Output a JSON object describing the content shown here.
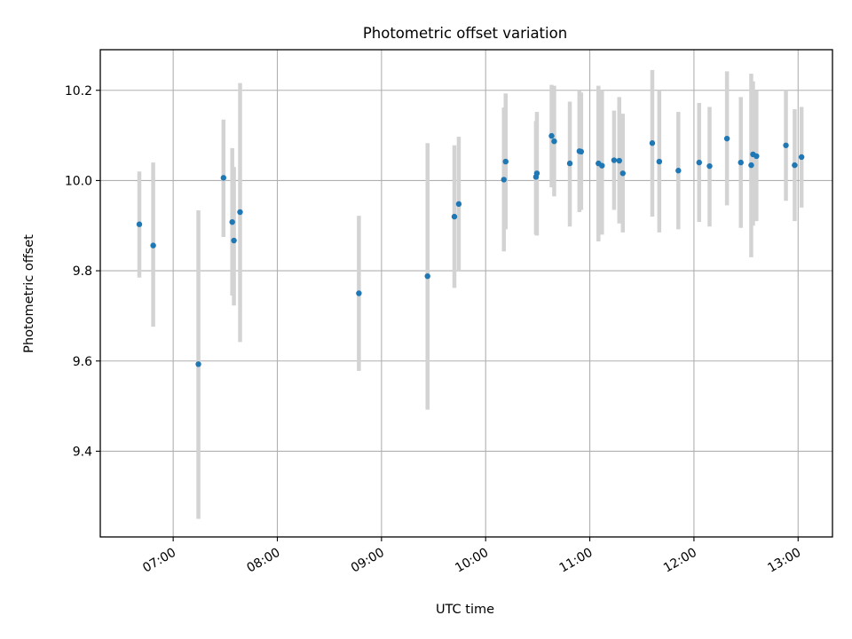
{
  "chart_data": {
    "type": "scatter",
    "title": "Photometric offset variation",
    "xlabel": "UTC time",
    "ylabel": "Photometric offset",
    "grid": true,
    "x_unit": "hours UTC",
    "xlim": [
      6.3,
      13.33
    ],
    "ylim": [
      9.21,
      10.29
    ],
    "x_ticks": [
      {
        "value": 7,
        "label": "07:00"
      },
      {
        "value": 8,
        "label": "08:00"
      },
      {
        "value": 9,
        "label": "09:00"
      },
      {
        "value": 10,
        "label": "10:00"
      },
      {
        "value": 11,
        "label": "11:00"
      },
      {
        "value": 12,
        "label": "12:00"
      },
      {
        "value": 13,
        "label": "13:00"
      }
    ],
    "y_ticks": [
      {
        "value": 9.4,
        "label": "9.4"
      },
      {
        "value": 9.6,
        "label": "9.6"
      },
      {
        "value": 9.8,
        "label": "9.8"
      },
      {
        "value": 10.0,
        "label": "10.0"
      },
      {
        "value": 10.2,
        "label": "10.2"
      }
    ],
    "colors": {
      "point": "#1f77b4",
      "errorbar": "#d3d3d3",
      "grid": "#b0b0b0",
      "axes": "#000000"
    },
    "points": [
      {
        "x": 6.675,
        "y": 9.903,
        "lo": 9.785,
        "hi": 10.02
      },
      {
        "x": 6.808,
        "y": 9.856,
        "lo": 9.676,
        "hi": 10.04
      },
      {
        "x": 7.242,
        "y": 9.593,
        "lo": 9.25,
        "hi": 9.934
      },
      {
        "x": 7.483,
        "y": 10.006,
        "lo": 9.875,
        "hi": 10.135
      },
      {
        "x": 7.567,
        "y": 9.908,
        "lo": 9.745,
        "hi": 10.072
      },
      {
        "x": 7.583,
        "y": 9.867,
        "lo": 9.723,
        "hi": 10.03
      },
      {
        "x": 7.642,
        "y": 9.93,
        "lo": 9.642,
        "hi": 10.216
      },
      {
        "x": 8.783,
        "y": 9.75,
        "lo": 9.578,
        "hi": 9.922
      },
      {
        "x": 9.442,
        "y": 9.788,
        "lo": 9.492,
        "hi": 10.083
      },
      {
        "x": 9.7,
        "y": 9.92,
        "lo": 9.762,
        "hi": 10.078
      },
      {
        "x": 9.742,
        "y": 9.948,
        "lo": 9.8,
        "hi": 10.097
      },
      {
        "x": 10.175,
        "y": 10.002,
        "lo": 9.843,
        "hi": 10.162
      },
      {
        "x": 10.192,
        "y": 10.042,
        "lo": 9.892,
        "hi": 10.193
      },
      {
        "x": 10.483,
        "y": 10.008,
        "lo": 9.88,
        "hi": 10.132
      },
      {
        "x": 10.492,
        "y": 10.016,
        "lo": 9.878,
        "hi": 10.152
      },
      {
        "x": 10.633,
        "y": 10.099,
        "lo": 9.985,
        "hi": 10.212
      },
      {
        "x": 10.658,
        "y": 10.087,
        "lo": 9.965,
        "hi": 10.21
      },
      {
        "x": 10.808,
        "y": 10.038,
        "lo": 9.898,
        "hi": 10.175
      },
      {
        "x": 10.9,
        "y": 10.065,
        "lo": 9.93,
        "hi": 10.2
      },
      {
        "x": 10.917,
        "y": 10.064,
        "lo": 9.935,
        "hi": 10.195
      },
      {
        "x": 11.083,
        "y": 10.038,
        "lo": 9.865,
        "hi": 10.21
      },
      {
        "x": 11.117,
        "y": 10.033,
        "lo": 9.88,
        "hi": 10.2
      },
      {
        "x": 11.233,
        "y": 10.045,
        "lo": 9.935,
        "hi": 10.155
      },
      {
        "x": 11.283,
        "y": 10.044,
        "lo": 9.905,
        "hi": 10.185
      },
      {
        "x": 11.317,
        "y": 10.016,
        "lo": 9.885,
        "hi": 10.148
      },
      {
        "x": 11.6,
        "y": 10.083,
        "lo": 9.92,
        "hi": 10.245
      },
      {
        "x": 11.667,
        "y": 10.042,
        "lo": 9.885,
        "hi": 10.2
      },
      {
        "x": 11.85,
        "y": 10.022,
        "lo": 9.892,
        "hi": 10.152
      },
      {
        "x": 12.05,
        "y": 10.04,
        "lo": 9.908,
        "hi": 10.172
      },
      {
        "x": 12.15,
        "y": 10.032,
        "lo": 9.898,
        "hi": 10.163
      },
      {
        "x": 12.317,
        "y": 10.093,
        "lo": 9.945,
        "hi": 10.242
      },
      {
        "x": 12.45,
        "y": 10.04,
        "lo": 9.895,
        "hi": 10.185
      },
      {
        "x": 12.55,
        "y": 10.034,
        "lo": 9.83,
        "hi": 10.237
      },
      {
        "x": 12.567,
        "y": 10.058,
        "lo": 9.9,
        "hi": 10.22
      },
      {
        "x": 12.6,
        "y": 10.054,
        "lo": 9.91,
        "hi": 10.2
      },
      {
        "x": 12.883,
        "y": 10.078,
        "lo": 9.955,
        "hi": 10.2
      },
      {
        "x": 12.967,
        "y": 10.034,
        "lo": 9.91,
        "hi": 10.158
      },
      {
        "x": 13.033,
        "y": 10.052,
        "lo": 9.94,
        "hi": 10.163
      }
    ]
  }
}
